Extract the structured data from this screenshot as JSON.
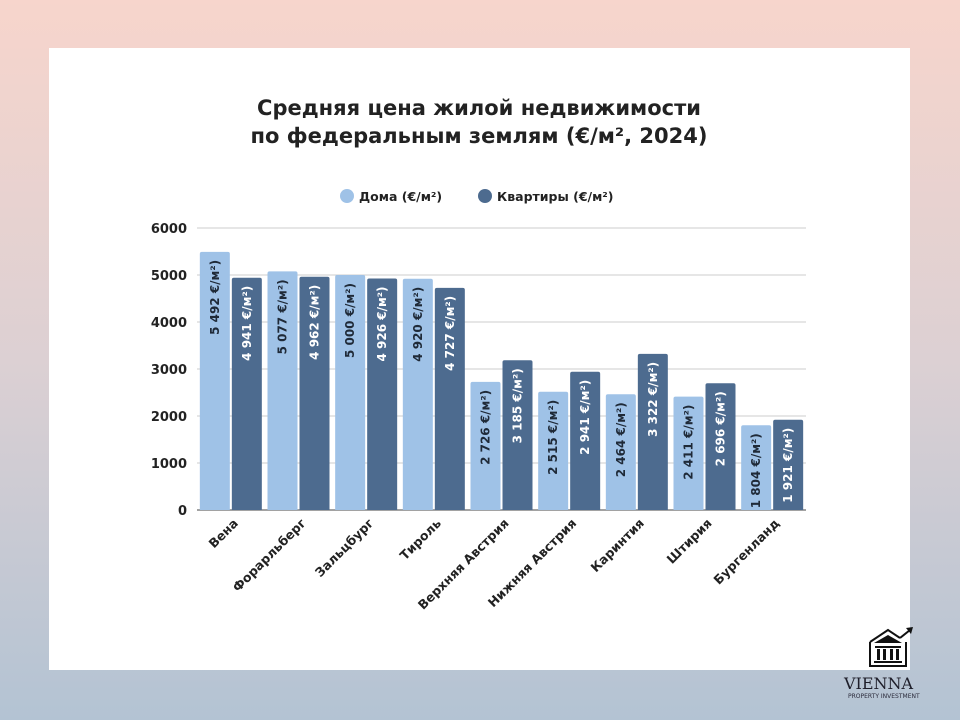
{
  "chart_data": {
    "type": "bar",
    "title": [
      "Средняя цена жилой недвижимости",
      "по федеральным землям (€/м², 2024)"
    ],
    "xlabel": "",
    "ylabel": "",
    "ylim": [
      0,
      6000
    ],
    "yticks": [
      "0",
      "1000",
      "2000",
      "3000",
      "4000",
      "5000",
      "6000"
    ],
    "grid": true,
    "legend_position": "top",
    "categories": [
      "Вена",
      "Форарльберг",
      "Зальцбург",
      "Тироль",
      "Верхняя Австрия",
      "Нижняя Австрия",
      "Каринтия",
      "Штирия",
      "Бургенланд"
    ],
    "series": [
      {
        "name": "Дома (€/м²)",
        "color": "#9fc2e7",
        "values": [
          5492,
          5077,
          5000,
          4920,
          2726,
          2515,
          2464,
          2411,
          1804
        ],
        "labels": [
          "5 492 €/м²)",
          "5 077 €/м²)",
          "5 000 €/м²)",
          "4 920 €/м²)",
          "2 726 €/м²)",
          "2 515 €/м²)",
          "2 464 €/м²)",
          "2 411 €/м²)",
          "1 804 €/м²)"
        ]
      },
      {
        "name": "Квартиры (€/м²)",
        "color": "#4d6b8f",
        "values": [
          4941,
          4962,
          4926,
          4727,
          3185,
          2941,
          3322,
          2696,
          1921
        ],
        "labels": [
          "4 941 €/м²)",
          "4 962 €/м²)",
          "4 926 €/м²)",
          "4 727 €/м²)",
          "3 185 €/м²)",
          "2 941 €/м²)",
          "3 322 €/м²)",
          "2 696 €/м²)",
          "1 921 €/м²)"
        ]
      }
    ]
  },
  "logo": {
    "name": "VIENNA",
    "tagline": "PROPERTY INVESTMENT",
    "icon": "building-with-rising-arrow-icon"
  }
}
